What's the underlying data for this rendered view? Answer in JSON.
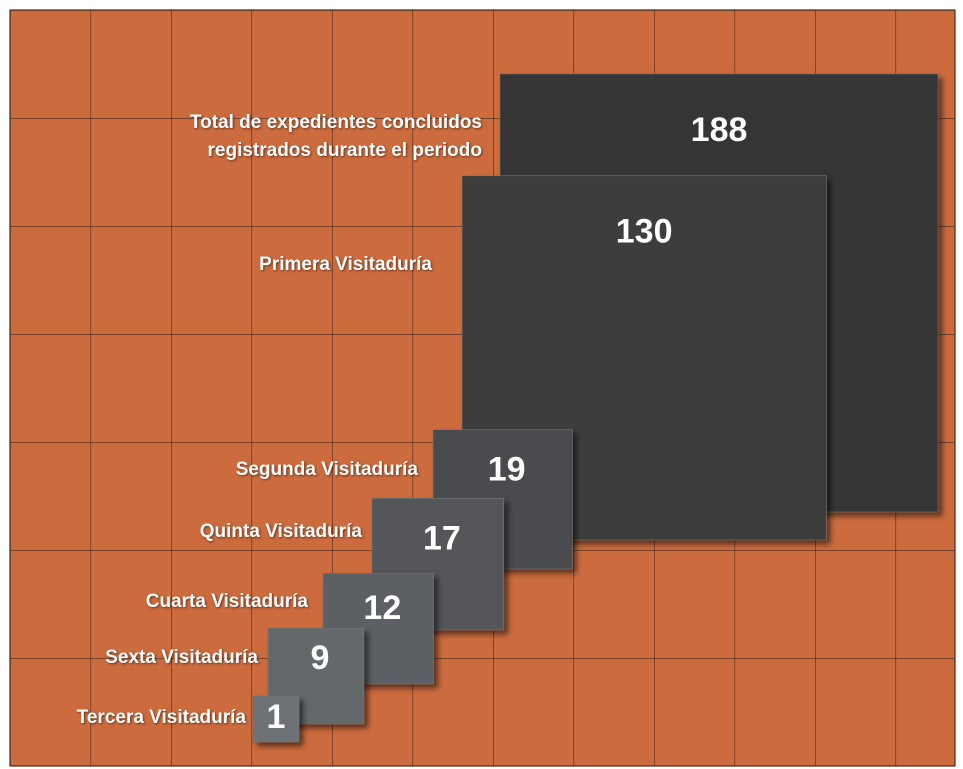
{
  "chart_data": {
    "type": "square",
    "categories": [
      "Total de expedientes concluidos registrados durante el periodo",
      "Primera Visitaduría",
      "Segunda Visitaduría",
      "Quinta Visitaduría",
      "Cuarta Visitaduría",
      "Sexta Visitaduría",
      "Tercera Visitaduría"
    ],
    "values": [
      188,
      130,
      19,
      17,
      12,
      9,
      1
    ],
    "colors": [
      "#353535",
      "#3e3e3e",
      "#4a4c4f",
      "#54575a",
      "#5c5f63",
      "#64676b",
      "#6e7175"
    ]
  }
}
